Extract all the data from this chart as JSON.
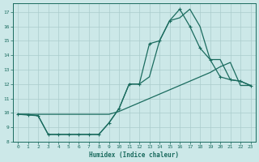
{
  "xlabel": "Humidex (Indice chaleur)",
  "bg_color": "#cce8e8",
  "grid_color": "#aacccc",
  "line_color": "#1a6b5e",
  "xlim": [
    -0.5,
    23.5
  ],
  "ylim": [
    8.0,
    17.6
  ],
  "yticks": [
    8,
    9,
    10,
    11,
    12,
    13,
    14,
    15,
    16,
    17
  ],
  "xticks": [
    0,
    1,
    2,
    3,
    4,
    5,
    6,
    7,
    8,
    9,
    10,
    11,
    12,
    13,
    14,
    15,
    16,
    17,
    18,
    19,
    20,
    21,
    22,
    23
  ],
  "line1_x": [
    0,
    1,
    2,
    3,
    4,
    5,
    6,
    7,
    8,
    9,
    10,
    11,
    12,
    13,
    14,
    15,
    16,
    17,
    18,
    19,
    20,
    21,
    22,
    23
  ],
  "line1_y": [
    9.9,
    9.85,
    9.8,
    8.5,
    8.5,
    8.5,
    8.5,
    8.5,
    8.5,
    9.3,
    10.3,
    12.0,
    12.0,
    14.8,
    15.0,
    16.4,
    17.2,
    16.0,
    14.5,
    13.7,
    12.5,
    12.3,
    12.2,
    11.9
  ],
  "line2_x": [
    0,
    1,
    2,
    3,
    4,
    5,
    6,
    7,
    8,
    9,
    10,
    11,
    12,
    13,
    14,
    15,
    16,
    17,
    18,
    19,
    20,
    21,
    22,
    23
  ],
  "line2_y": [
    9.9,
    9.9,
    9.9,
    9.9,
    9.9,
    9.9,
    9.9,
    9.9,
    9.9,
    9.9,
    10.1,
    10.4,
    10.7,
    11.0,
    11.3,
    11.6,
    11.9,
    12.2,
    12.5,
    12.8,
    13.2,
    13.5,
    11.9,
    11.9
  ],
  "line3_x": [
    0,
    1,
    2,
    3,
    4,
    5,
    6,
    7,
    8,
    9,
    10,
    11,
    12,
    13,
    14,
    15,
    16,
    17,
    18,
    19,
    20,
    21,
    22,
    23
  ],
  "line3_y": [
    9.9,
    9.9,
    9.8,
    8.5,
    8.5,
    8.5,
    8.5,
    8.5,
    8.5,
    9.3,
    10.3,
    12.0,
    12.0,
    12.5,
    15.0,
    16.4,
    16.6,
    17.2,
    16.0,
    13.7,
    13.7,
    12.3,
    12.2,
    11.9
  ]
}
